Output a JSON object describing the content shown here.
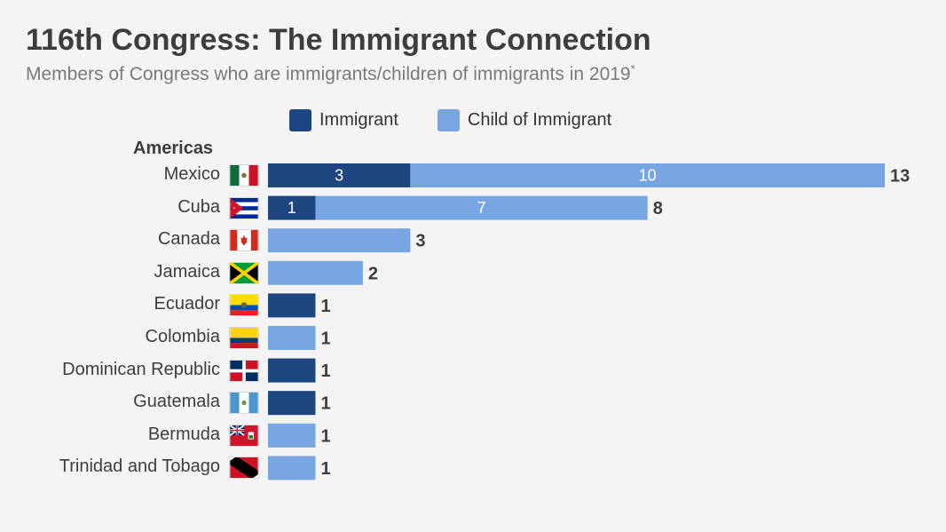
{
  "title": "116th Congress: The Immigrant Connection",
  "subtitle": "Members of Congress who are immigrants/children of immigrants in 2019",
  "subtitle_mark": "*",
  "colors": {
    "immigrant": "#1d4580",
    "child": "#78a6e2",
    "total_text": "#3d3d3d"
  },
  "chart_data": {
    "type": "bar",
    "orientation": "horizontal",
    "stacked": true,
    "title": "116th Congress: The Immigrant Connection",
    "subtitle": "Members of Congress who are immigrants/children of immigrants in 2019*",
    "group_label": "Americas",
    "legend": {
      "position": "top",
      "entries": [
        "Immigrant",
        "Child of Immigrant"
      ]
    },
    "categories": [
      "Mexico",
      "Cuba",
      "Canada",
      "Jamaica",
      "Ecuador",
      "Colombia",
      "Dominican Republic",
      "Guatemala",
      "Bermuda",
      "Trinidad and Tobago"
    ],
    "flags": [
      "mexico-flag-icon",
      "cuba-flag-icon",
      "canada-flag-icon",
      "jamaica-flag-icon",
      "ecuador-flag-icon",
      "colombia-flag-icon",
      "dominican-republic-flag-icon",
      "guatemala-flag-icon",
      "bermuda-flag-icon",
      "trinidad-and-tobago-flag-icon"
    ],
    "series": [
      {
        "name": "Immigrant",
        "values": [
          3,
          1,
          0,
          0,
          1,
          0,
          1,
          1,
          0,
          0
        ]
      },
      {
        "name": "Child of Immigrant",
        "values": [
          10,
          7,
          3,
          2,
          0,
          1,
          0,
          0,
          1,
          1
        ]
      }
    ],
    "totals": [
      13,
      8,
      3,
      2,
      1,
      1,
      1,
      1,
      1,
      1
    ],
    "segment_labels_shown": [
      true,
      true,
      false,
      false,
      false,
      false,
      false,
      false,
      false,
      false
    ],
    "xlim": [
      0,
      13
    ],
    "grid": false
  }
}
